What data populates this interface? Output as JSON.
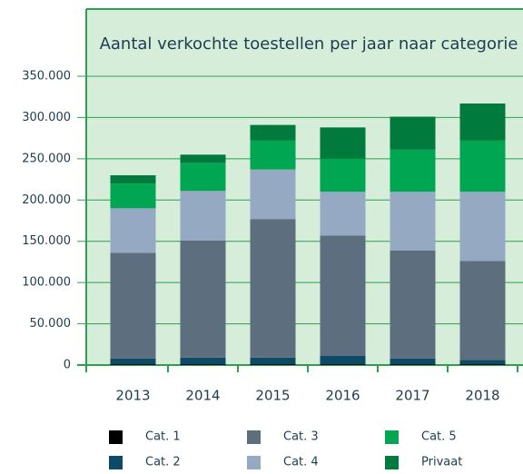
{
  "chart_data": {
    "type": "stacked_bar",
    "title": "Aantal verkochte toestellen per jaar naar categorie",
    "categories": [
      "2013",
      "2014",
      "2015",
      "2016",
      "2017",
      "2018"
    ],
    "series": [
      {
        "name": "Cat. 1",
        "color": "#000000",
        "values": [
          1000,
          1000,
          1000,
          1000,
          1000,
          1000
        ]
      },
      {
        "name": "Cat. 2",
        "color": "#0c4a68",
        "values": [
          7000,
          8000,
          8000,
          10000,
          7000,
          5000
        ]
      },
      {
        "name": "Cat. 3",
        "color": "#5d6f7e",
        "values": [
          128000,
          142000,
          168000,
          146000,
          131000,
          120000
        ]
      },
      {
        "name": "Cat. 4",
        "color": "#95aac2",
        "values": [
          54000,
          60000,
          60000,
          53000,
          71000,
          84000
        ]
      },
      {
        "name": "Cat. 5",
        "color": "#00a651",
        "values": [
          30000,
          34000,
          35000,
          40000,
          51000,
          62000
        ]
      },
      {
        "name": "Privaat",
        "color": "#007a3d",
        "values": [
          10000,
          10000,
          19000,
          38000,
          40000,
          45000
        ]
      }
    ],
    "ylim": [
      0,
      350000
    ],
    "yticks": [
      0,
      {
        "value": 50000,
        "label": "50.000"
      },
      {
        "value": 100000,
        "label": "100.000"
      },
      {
        "value": 150000,
        "label": "150.000"
      },
      {
        "value": 200000,
        "label": "200.000"
      },
      {
        "value": 250000,
        "label": "250.000"
      },
      {
        "value": 300000,
        "label": "300.000"
      },
      {
        "value": 350000,
        "label": "350.000"
      }
    ],
    "grid": true
  }
}
